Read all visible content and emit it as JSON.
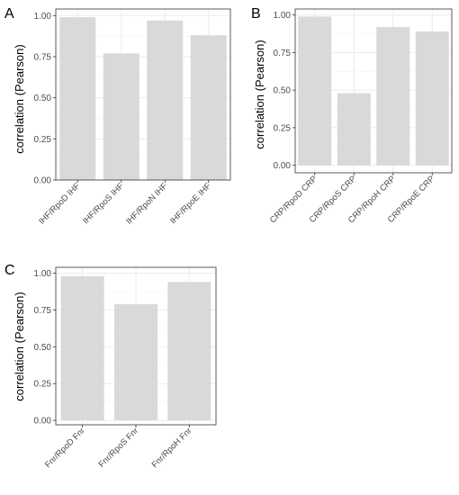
{
  "chart_data": [
    {
      "panel_label": "A",
      "type": "bar",
      "ylabel": "correlation (Pearson)",
      "xlabel": "",
      "categories": [
        "IHF/RpoD IHF",
        "IHF/RpoS IHF",
        "IHF/RpoN IHF",
        "IHF/RpoE IHF"
      ],
      "values": [
        0.99,
        0.77,
        0.97,
        0.88
      ],
      "ylim": [
        0,
        1.04
      ],
      "yticks": [
        0.0,
        0.25,
        0.5,
        0.75,
        1.0
      ],
      "ytick_labels": [
        "0.00",
        "0.25",
        "0.50",
        "0.75",
        "1.00"
      ],
      "grid": true,
      "bar_color": "#d9d9d9",
      "grid_color": "#ebebeb"
    },
    {
      "panel_label": "B",
      "type": "bar",
      "ylabel": "correlation (Pearson)",
      "xlabel": "",
      "categories": [
        "CRP/RpoD CRP",
        "CRP/RpoS CRP",
        "CRP/RpoH CRP",
        "CRP/RpoE CRP"
      ],
      "values": [
        0.99,
        0.48,
        0.92,
        0.89
      ],
      "ylim": [
        -0.05,
        1.04
      ],
      "yticks": [
        0.0,
        0.25,
        0.5,
        0.75,
        1.0
      ],
      "ytick_labels": [
        "0.00",
        "0.25",
        "0.50",
        "0.75",
        "1.00"
      ],
      "grid": true,
      "bar_color": "#d9d9d9",
      "grid_color": "#ebebeb"
    },
    {
      "panel_label": "C",
      "type": "bar",
      "ylabel": "correlation (Pearson)",
      "xlabel": "",
      "categories": [
        "Fnr/RpoD Fnr",
        "Fnr/RpoS Fnr",
        "Fnr/RpoH Fnr"
      ],
      "values": [
        0.98,
        0.79,
        0.94
      ],
      "ylim": [
        -0.03,
        1.04
      ],
      "yticks": [
        0.0,
        0.25,
        0.5,
        0.75,
        1.0
      ],
      "ytick_labels": [
        "0.00",
        "0.25",
        "0.50",
        "0.75",
        "1.00"
      ],
      "grid": true,
      "bar_color": "#d9d9d9",
      "grid_color": "#ebebeb"
    }
  ]
}
